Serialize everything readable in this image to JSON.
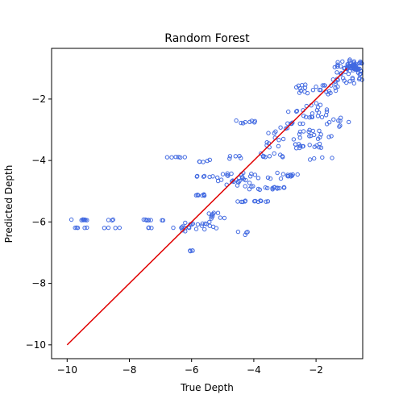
{
  "chart_data": {
    "type": "scatter",
    "title": "Random Forest",
    "xlabel": "True Depth",
    "ylabel": "Predicted Depth",
    "xlim": [
      -10.5,
      -0.5
    ],
    "ylim": [
      -10.45,
      -0.35
    ],
    "xticks": [
      -10,
      -8,
      -6,
      -4,
      -2
    ],
    "yticks": [
      -10,
      -8,
      -6,
      -4,
      -2
    ],
    "grid": false,
    "point_color": "#4169e1",
    "line_color": "#e00000",
    "reference_line": {
      "x": [
        -10,
        -1
      ],
      "y": [
        -10,
        -1
      ]
    },
    "clusters": [
      {
        "xr": [
          -10.0,
          -9.2
        ],
        "yr": [
          -5.95,
          -5.92
        ],
        "n": 8
      },
      {
        "xr": [
          -9.8,
          -9.3
        ],
        "yr": [
          -6.2,
          -6.18
        ],
        "n": 5
      },
      {
        "xr": [
          -8.8,
          -8.5
        ],
        "yr": [
          -5.95,
          -5.92
        ],
        "n": 3
      },
      {
        "xr": [
          -8.9,
          -8.3
        ],
        "yr": [
          -6.2,
          -6.18
        ],
        "n": 4
      },
      {
        "xr": [
          -7.8,
          -7.2
        ],
        "yr": [
          -5.95,
          -5.92
        ],
        "n": 6
      },
      {
        "xr": [
          -7.5,
          -7.2
        ],
        "yr": [
          -6.2,
          -6.18
        ],
        "n": 3
      },
      {
        "xr": [
          -7.0,
          -6.8
        ],
        "yr": [
          -5.95,
          -5.92
        ],
        "n": 2
      },
      {
        "xr": [
          -7.1,
          -6.0
        ],
        "yr": [
          -3.9,
          -3.88
        ],
        "n": 6
      },
      {
        "xr": [
          -6.6,
          -6.0
        ],
        "yr": [
          -6.2,
          -6.18
        ],
        "n": 4
      },
      {
        "xr": [
          -6.3,
          -5.2
        ],
        "yr": [
          -6.4,
          -6.0
        ],
        "n": 20
      },
      {
        "xr": [
          -6.1,
          -5.9
        ],
        "yr": [
          -6.95,
          -6.92
        ],
        "n": 4
      },
      {
        "xr": [
          -6.0,
          -5.4
        ],
        "yr": [
          -5.15,
          -5.1
        ],
        "n": 7
      },
      {
        "xr": [
          -5.9,
          -5.3
        ],
        "yr": [
          -4.55,
          -4.5
        ],
        "n": 6
      },
      {
        "xr": [
          -5.8,
          -5.3
        ],
        "yr": [
          -4.05,
          -3.95
        ],
        "n": 5
      },
      {
        "xr": [
          -5.5,
          -4.9
        ],
        "yr": [
          -5.95,
          -5.7
        ],
        "n": 10
      },
      {
        "xr": [
          -5.2,
          -4.0
        ],
        "yr": [
          -4.85,
          -4.4
        ],
        "n": 28
      },
      {
        "xr": [
          -4.9,
          -4.3
        ],
        "yr": [
          -3.95,
          -3.85
        ],
        "n": 5
      },
      {
        "xr": [
          -4.7,
          -4.1
        ],
        "yr": [
          -6.45,
          -6.3
        ],
        "n": 4
      },
      {
        "xr": [
          -4.6,
          -3.3
        ],
        "yr": [
          -5.35,
          -5.3
        ],
        "n": 12
      },
      {
        "xr": [
          -4.6,
          -3.8
        ],
        "yr": [
          -2.8,
          -2.7
        ],
        "n": 8
      },
      {
        "xr": [
          -4.2,
          -3.0
        ],
        "yr": [
          -4.95,
          -4.85
        ],
        "n": 16
      },
      {
        "xr": [
          -4.0,
          -2.8
        ],
        "yr": [
          -4.6,
          -4.4
        ],
        "n": 10
      },
      {
        "xr": [
          -3.8,
          -2.7
        ],
        "yr": [
          -3.9,
          -3.75
        ],
        "n": 9
      },
      {
        "xr": [
          -3.6,
          -2.3
        ],
        "yr": [
          -3.6,
          -2.9
        ],
        "n": 20
      },
      {
        "xr": [
          -3.2,
          -2.4
        ],
        "yr": [
          -4.5,
          -4.45
        ],
        "n": 6
      },
      {
        "xr": [
          -3.0,
          -2.4
        ],
        "yr": [
          -2.85,
          -2.75
        ],
        "n": 6
      },
      {
        "xr": [
          -2.8,
          -1.8
        ],
        "yr": [
          -3.6,
          -3.45
        ],
        "n": 12
      },
      {
        "xr": [
          -2.9,
          -1.6
        ],
        "yr": [
          -2.6,
          -2.1
        ],
        "n": 22
      },
      {
        "xr": [
          -2.6,
          -1.4
        ],
        "yr": [
          -3.3,
          -3.0
        ],
        "n": 14
      },
      {
        "xr": [
          -2.8,
          -1.2
        ],
        "yr": [
          -1.85,
          -1.5
        ],
        "n": 26
      },
      {
        "xr": [
          -2.2,
          -1.4
        ],
        "yr": [
          -4.0,
          -3.9
        ],
        "n": 4
      },
      {
        "xr": [
          -1.9,
          -1.2
        ],
        "yr": [
          -2.9,
          -2.6
        ],
        "n": 8
      },
      {
        "xr": [
          -1.6,
          -0.5
        ],
        "yr": [
          -1.5,
          -1.3
        ],
        "n": 14
      },
      {
        "xr": [
          -1.4,
          -0.5
        ],
        "yr": [
          -1.2,
          -0.7
        ],
        "n": 40
      },
      {
        "xr": [
          -1.0,
          -0.6
        ],
        "yr": [
          -1.05,
          -0.85
        ],
        "n": 30
      },
      {
        "xr": [
          -1.0,
          -0.9
        ],
        "yr": [
          -2.75,
          -2.7
        ],
        "n": 1
      }
    ]
  }
}
